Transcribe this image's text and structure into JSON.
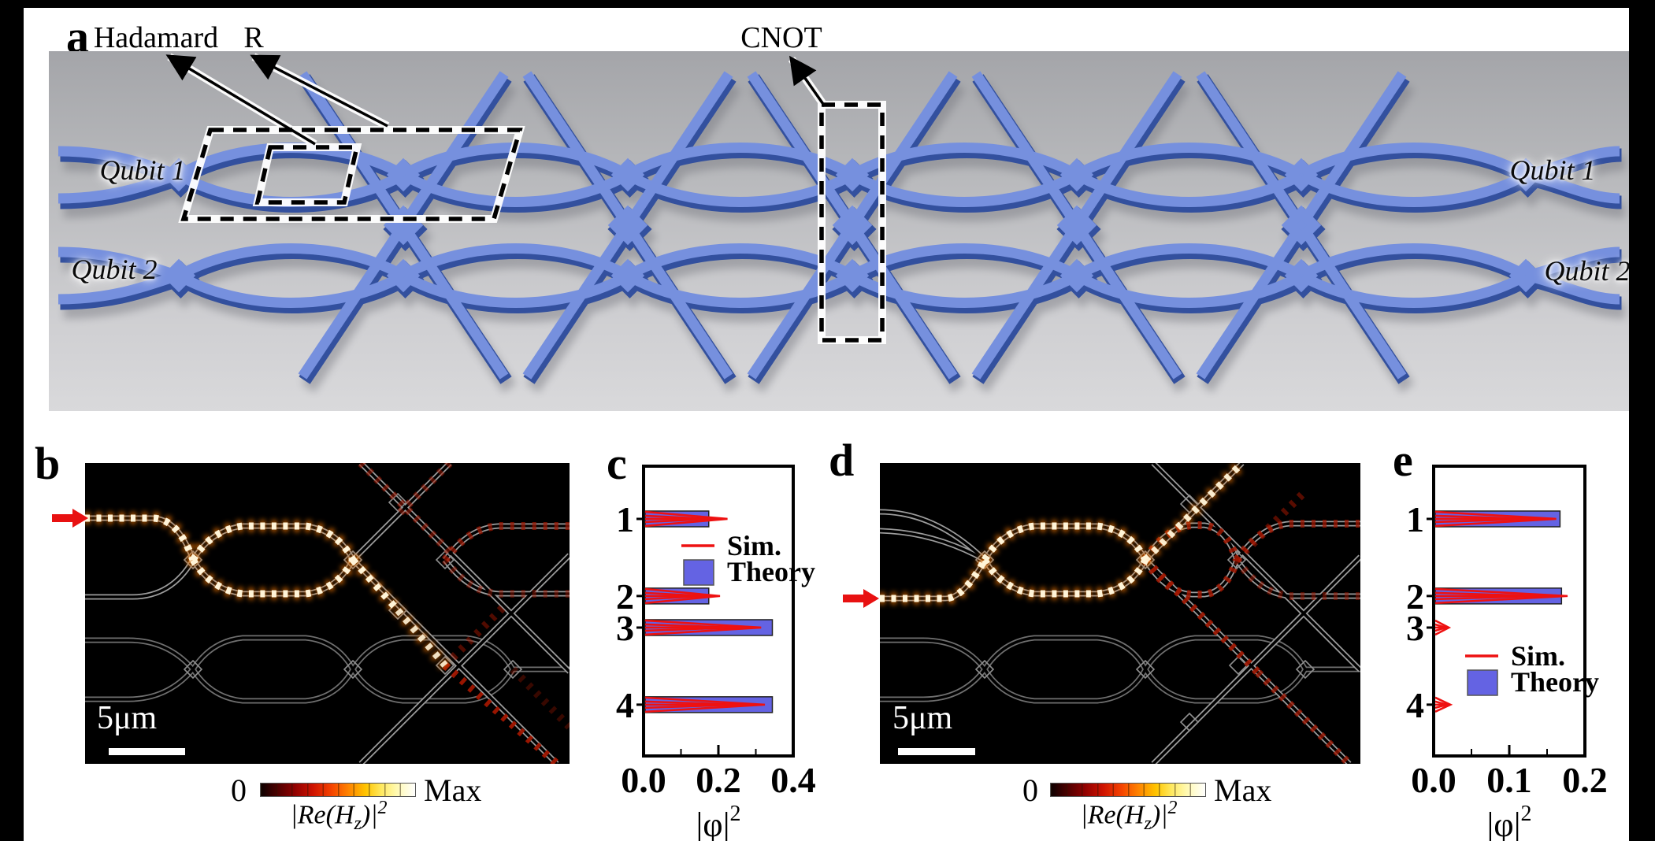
{
  "panel_a": {
    "label": "a",
    "gates": {
      "hadamard": "Hadamard",
      "r": "R",
      "cnot": "CNOT"
    },
    "qubit1": "Qubit 1",
    "qubit2": "Qubit 2"
  },
  "panel_b": {
    "label": "b",
    "scale_bar": "5μm",
    "colorbar": {
      "min": "0",
      "max": "Max",
      "field_pre": "|Re(H",
      "field_sub": "z",
      "field_mid": ")|",
      "field_sup": "2"
    }
  },
  "panel_c": {
    "label": "c"
  },
  "panel_d": {
    "label": "d",
    "scale_bar": "5μm",
    "colorbar": {
      "min": "0",
      "max": "Max",
      "field_pre": "|Re(H",
      "field_sub": "z",
      "field_mid": ")|",
      "field_sup": "2"
    }
  },
  "panel_e": {
    "label": "e"
  },
  "chart_data": [
    {
      "id": "c",
      "type": "bar",
      "orientation": "horizontal",
      "title": "",
      "categories": [
        "1",
        "2",
        "3",
        "4"
      ],
      "series": [
        {
          "name": "Sim.",
          "style": "red-line",
          "values": [
            0.22,
            0.2,
            0.31,
            0.32
          ]
        },
        {
          "name": "Theory",
          "style": "blue-bar",
          "values": [
            0.17,
            0.17,
            0.34,
            0.34
          ]
        }
      ],
      "xlabel": "|φ|",
      "xlabel_sup": "2",
      "xlim": [
        0,
        0.4
      ],
      "xticks": [
        0,
        0.2,
        0.4
      ],
      "xtick_labels": [
        "0.0",
        "0.2",
        "0.4"
      ],
      "minor_ticks": [
        0.1,
        0.3
      ],
      "legend": [
        "Sim.",
        "Theory"
      ],
      "legend_position": "upper"
    },
    {
      "id": "e",
      "type": "bar",
      "orientation": "horizontal",
      "title": "",
      "categories": [
        "1",
        "2",
        "3",
        "4"
      ],
      "series": [
        {
          "name": "Sim.",
          "style": "red-line",
          "values": [
            0.16,
            0.175,
            0.018,
            0.02
          ]
        },
        {
          "name": "Theory",
          "style": "blue-bar",
          "values": [
            0.165,
            0.167,
            0,
            0
          ]
        }
      ],
      "xlabel": "|φ|",
      "xlabel_sup": "2",
      "xlim": [
        0,
        0.2
      ],
      "xticks": [
        0,
        0.1,
        0.2
      ],
      "xtick_labels": [
        "0.0",
        "0.1",
        "0.2"
      ],
      "minor_ticks": [
        0.05,
        0.15
      ],
      "legend": [
        "Sim.",
        "Theory"
      ],
      "legend_position": "lower"
    }
  ],
  "colors": {
    "theory_bar": "#6463e3",
    "sim_line": "#ee1111",
    "waveguide_blue": "#7690de",
    "waveguide_dark_blue": "#33509e",
    "render_background": "#c7c8cb",
    "field_hot_core": "#fff4d8",
    "field_hot_glow": "#ff7b00",
    "field_dim_red": "#a11600"
  }
}
